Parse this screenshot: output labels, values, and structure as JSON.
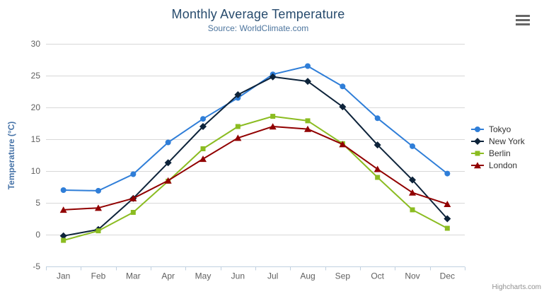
{
  "credits": "Highcharts.com",
  "icons": {
    "menu": "hamburger-menu-icon"
  },
  "colors": {
    "title": "#274b6d",
    "subtitle": "#4d759e",
    "y_axis_title": "#4572a7",
    "axis_labels": "#606060",
    "gridline": "#d8d8d8",
    "axis_line": "#c0d0e0",
    "legend_text": "#333333",
    "credits_text": "#909090",
    "menu_icon": "#666666"
  },
  "chart_data": {
    "type": "line",
    "title": "Monthly Average Temperature",
    "subtitle": "Source: WorldClimate.com",
    "xlabel": "",
    "ylabel": "Temperature (°C)",
    "ylim": [
      -5,
      30
    ],
    "ytick_interval": 5,
    "grid": true,
    "legend_position": "right",
    "categories": [
      "Jan",
      "Feb",
      "Mar",
      "Apr",
      "May",
      "Jun",
      "Jul",
      "Aug",
      "Sep",
      "Oct",
      "Nov",
      "Dec"
    ],
    "series": [
      {
        "name": "Tokyo",
        "color": "#2f7ed8",
        "marker": "circle",
        "values": [
          7.0,
          6.9,
          9.5,
          14.5,
          18.2,
          21.5,
          25.2,
          26.5,
          23.3,
          18.3,
          13.9,
          9.6
        ]
      },
      {
        "name": "New York",
        "color": "#0d233a",
        "marker": "diamond",
        "values": [
          -0.2,
          0.8,
          5.7,
          11.3,
          17.0,
          22.0,
          24.8,
          24.1,
          20.1,
          14.1,
          8.6,
          2.5
        ]
      },
      {
        "name": "Berlin",
        "color": "#8bbc21",
        "marker": "square",
        "values": [
          -0.9,
          0.6,
          3.5,
          8.4,
          13.5,
          17.0,
          18.6,
          17.9,
          14.3,
          9.0,
          3.9,
          1.0
        ]
      },
      {
        "name": "London",
        "color": "#910000",
        "marker": "triangle",
        "values": [
          3.9,
          4.2,
          5.7,
          8.5,
          11.9,
          15.2,
          17.0,
          16.6,
          14.2,
          10.3,
          6.6,
          4.8
        ]
      }
    ]
  }
}
